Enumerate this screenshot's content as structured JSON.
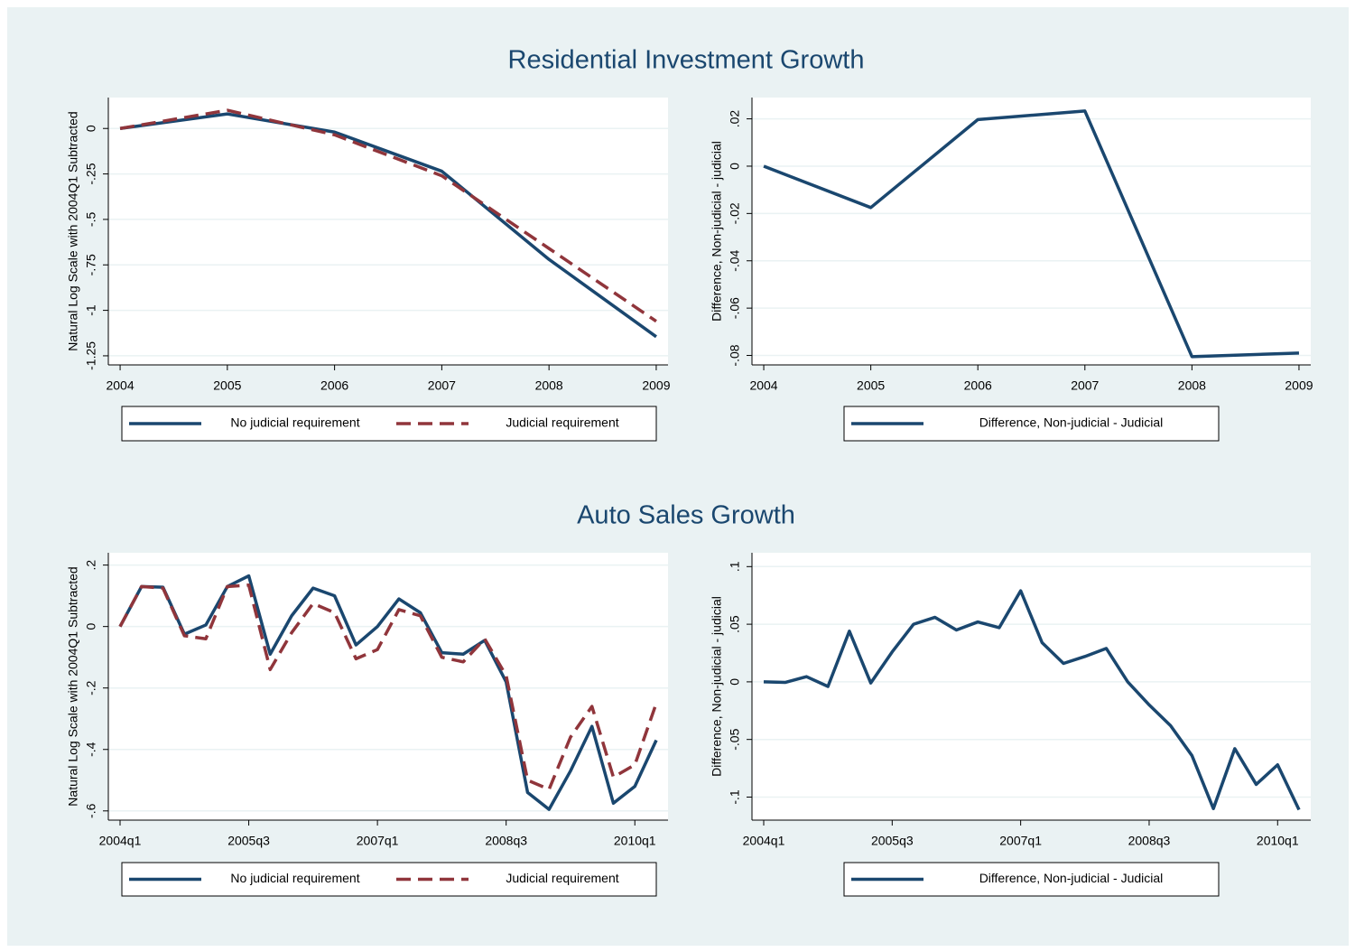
{
  "chart_data": [
    {
      "type": "line",
      "title": "Residential Investment Growth",
      "ylabel": "Natural Log Scale with 2004Q1 Subtracted",
      "x": [
        2004,
        2005,
        2006,
        2007,
        2008,
        2009
      ],
      "xlim": [
        2003.89,
        2009.11
      ],
      "xticks": [
        2004,
        2005,
        2006,
        2007,
        2008,
        2009
      ],
      "ylim": [
        -1.3,
        0.17
      ],
      "yticks": [
        0,
        {
          "value": -0.25,
          "label": "-.25"
        },
        {
          "value": -0.5,
          "label": "-.5"
        },
        {
          "value": -0.75,
          "label": "-.75"
        },
        -1,
        {
          "value": -1.25,
          "label": "-1.25"
        }
      ],
      "grid": true,
      "series": [
        {
          "name": "No judicial requirement",
          "color": "#1a476f",
          "dashed": false,
          "values": [
            0,
            0.08,
            -0.02,
            -0.235,
            -0.72,
            -1.145
          ]
        },
        {
          "name": "Judicial requirement",
          "color": "#90353b",
          "dashed": true,
          "values": [
            0,
            0.1,
            -0.035,
            -0.26,
            -0.66,
            -1.06
          ]
        }
      ]
    },
    {
      "type": "line",
      "ylabel": "Difference, Non-judicial - judicial",
      "x": [
        2004,
        2005,
        2006,
        2007,
        2008,
        2009
      ],
      "xlim": [
        2003.89,
        2009.11
      ],
      "xticks": [
        2004,
        2005,
        2006,
        2007,
        2008,
        2009
      ],
      "ylim": [
        -0.084,
        0.029
      ],
      "yticks": [
        {
          "value": 0.02,
          "label": ".02"
        },
        0,
        {
          "value": -0.02,
          "label": "-.02"
        },
        {
          "value": -0.04,
          "label": "-.04"
        },
        {
          "value": -0.06,
          "label": "-.06"
        },
        {
          "value": -0.08,
          "label": "-.08"
        }
      ],
      "grid": true,
      "series": [
        {
          "name": "Difference, Non-judicial - Judicial",
          "color": "#1a476f",
          "dashed": false,
          "values": [
            0,
            -0.0175,
            0.0197,
            0.0233,
            -0.0805,
            -0.079
          ]
        }
      ]
    },
    {
      "type": "line",
      "title": "Auto Sales Growth",
      "ylabel": "Natural Log Scale with 2004Q1 Subtracted",
      "categories": [
        "2004q1",
        null,
        null,
        null,
        null,
        null,
        "2005q3",
        null,
        null,
        null,
        null,
        null,
        "2007q1",
        null,
        null,
        null,
        null,
        null,
        "2008q3",
        null,
        null,
        null,
        null,
        null,
        "2010q1",
        null
      ],
      "ylim": [
        -0.63,
        0.24
      ],
      "yticks": [
        {
          "value": 0.2,
          "label": ".2"
        },
        0,
        {
          "value": -0.2,
          "label": "-.2"
        },
        {
          "value": -0.4,
          "label": "-.4"
        },
        {
          "value": -0.6,
          "label": "-.6"
        }
      ],
      "grid": true,
      "series": [
        {
          "name": "No judicial requirement",
          "color": "#1a476f",
          "dashed": false,
          "values": [
            0,
            0.13,
            0.128,
            -0.025,
            0.005,
            0.13,
            0.165,
            -0.09,
            0.035,
            0.125,
            0.1,
            -0.06,
            0.0,
            0.09,
            0.045,
            -0.085,
            -0.09,
            -0.045,
            -0.18,
            -0.54,
            -0.595,
            -0.47,
            -0.325,
            -0.575,
            -0.52,
            -0.37
          ]
        },
        {
          "name": "Judicial requirement",
          "color": "#90353b",
          "dashed": true,
          "values": [
            0,
            0.13,
            0.125,
            -0.03,
            -0.04,
            0.13,
            0.135,
            -0.14,
            -0.02,
            0.075,
            0.045,
            -0.105,
            -0.075,
            0.055,
            0.035,
            -0.1,
            -0.115,
            -0.04,
            -0.16,
            -0.5,
            -0.53,
            -0.36,
            -0.26,
            -0.49,
            -0.45,
            -0.25
          ]
        }
      ]
    },
    {
      "type": "line",
      "ylabel": "Difference, Non-judicial - judicial",
      "categories": [
        "2004q1",
        null,
        null,
        null,
        null,
        null,
        "2005q3",
        null,
        null,
        null,
        null,
        null,
        "2007q1",
        null,
        null,
        null,
        null,
        null,
        "2008q3",
        null,
        null,
        null,
        null,
        null,
        "2010q1",
        null
      ],
      "ylim": [
        -0.12,
        0.112
      ],
      "yticks": [
        {
          "value": 0.1,
          "label": ".1"
        },
        {
          "value": 0.05,
          "label": ".05"
        },
        0,
        {
          "value": -0.05,
          "label": "-.05"
        },
        {
          "value": -0.1,
          "label": "-.1"
        }
      ],
      "grid": true,
      "series": [
        {
          "name": "Difference, Non-judicial - Judicial",
          "color": "#1a476f",
          "dashed": false,
          "values": [
            0,
            -0.0005,
            0.0045,
            -0.004,
            0.044,
            -0.001,
            0.026,
            0.05,
            0.056,
            0.045,
            0.052,
            0.047,
            0.079,
            0.034,
            0.016,
            0.022,
            0.029,
            0.0,
            -0.02,
            -0.038,
            -0.064,
            -0.11,
            -0.058,
            -0.089,
            -0.072,
            -0.111
          ]
        }
      ]
    }
  ]
}
